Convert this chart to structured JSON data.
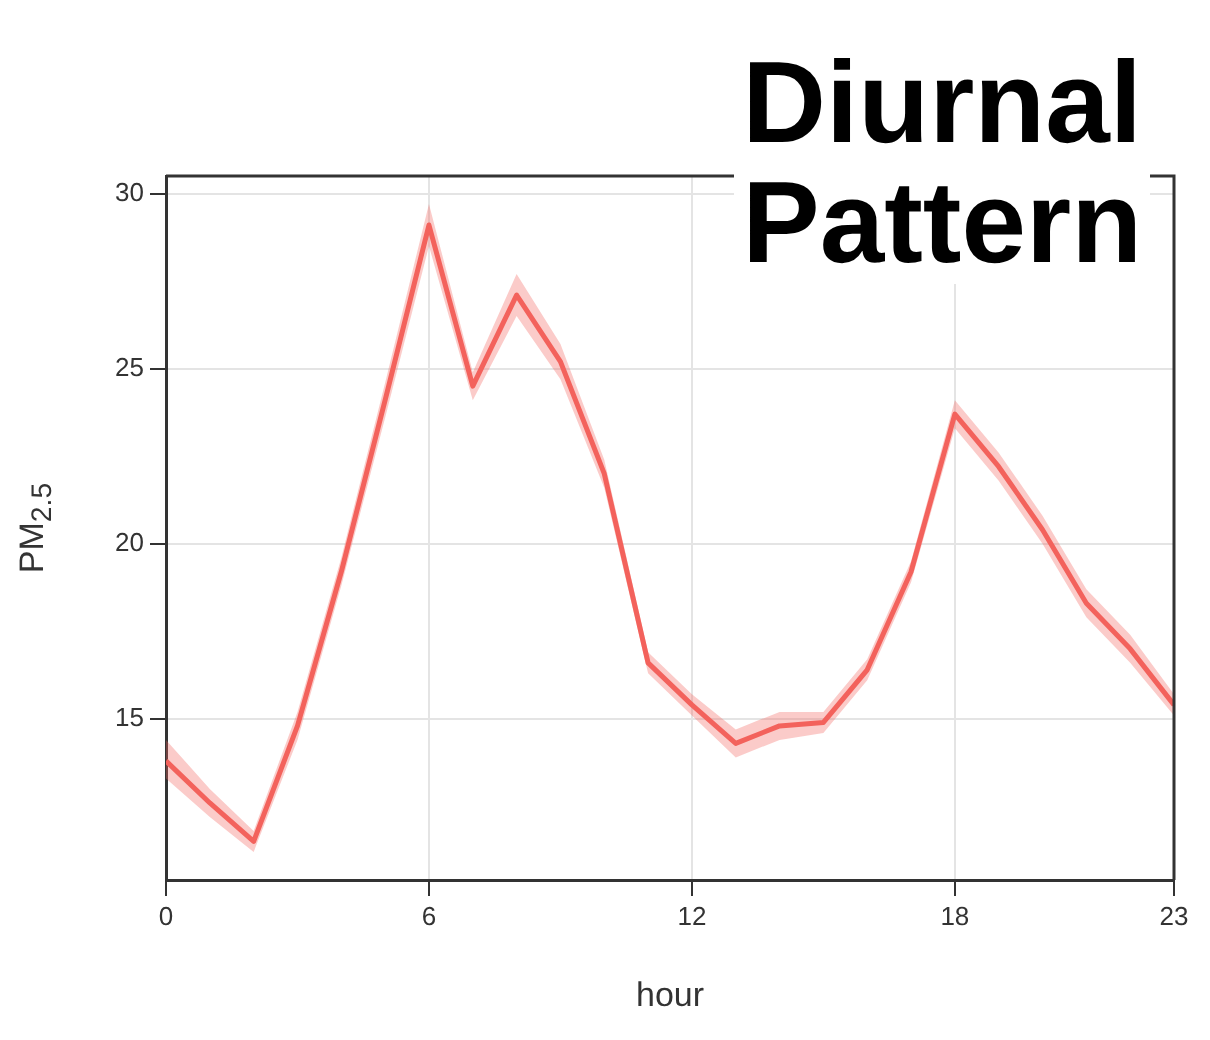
{
  "chart_data": {
    "type": "line",
    "title": "Diurnal Pattern",
    "xlabel": "hour",
    "ylabel": "PM$_{2.5}$",
    "x": [
      0,
      1,
      2,
      3,
      4,
      5,
      6,
      7,
      8,
      9,
      10,
      11,
      12,
      13,
      14,
      15,
      16,
      17,
      18,
      19,
      20,
      21,
      22,
      23
    ],
    "series": [
      {
        "color": "#f4625c",
        "values": [
          13.8,
          12.6,
          11.5,
          14.8,
          19.2,
          24.1,
          29.1,
          24.5,
          27.1,
          25.2,
          22.0,
          16.6,
          15.4,
          14.3,
          14.8,
          14.9,
          16.4,
          19.2,
          23.7,
          22.2,
          20.4,
          18.3,
          17.0,
          15.4
        ],
        "lower": [
          13.3,
          12.2,
          11.2,
          14.4,
          18.8,
          23.6,
          28.5,
          24.1,
          26.5,
          24.7,
          21.6,
          16.3,
          15.1,
          13.9,
          14.4,
          14.6,
          16.1,
          18.9,
          23.3,
          21.8,
          20.0,
          17.9,
          16.6,
          15.1
        ],
        "upper": [
          14.4,
          13.0,
          11.8,
          15.2,
          19.6,
          24.6,
          29.7,
          24.9,
          27.7,
          25.7,
          22.4,
          16.9,
          15.7,
          14.7,
          15.2,
          15.2,
          16.7,
          19.5,
          24.1,
          22.6,
          20.8,
          18.7,
          17.4,
          15.7
        ]
      }
    ],
    "xlim": [
      0,
      23
    ],
    "xticks": [
      0,
      6,
      12,
      18,
      23
    ],
    "ylim": [
      10.4,
      30.5
    ],
    "yticks": [
      15,
      20,
      25,
      30
    ],
    "grid": true,
    "legend": false,
    "marker": "none",
    "line_style": "solid"
  }
}
